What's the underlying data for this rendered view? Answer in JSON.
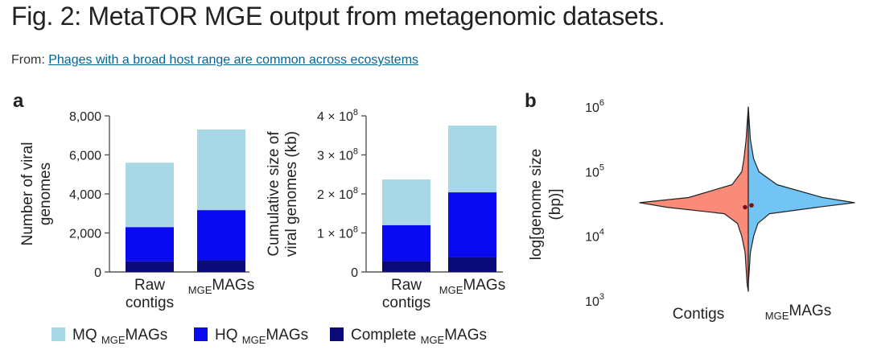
{
  "header": {
    "title": "Fig. 2: MetaTOR MGE output from metagenomic datasets.",
    "from_label": "From:",
    "from_link": "Phages with a broad host range are common across ecosystems"
  },
  "colors": {
    "mq": "#a8d8e5",
    "hq": "#0a0af0",
    "complete": "#0a0a78",
    "contigs_violin": "#fa8b78",
    "mags_violin": "#72c4f5"
  },
  "legend": [
    {
      "prefix": "MQ ",
      "sub": "MGE",
      "suffix": "MAGs",
      "color": "#a8d8e5"
    },
    {
      "prefix": "HQ ",
      "sub": "MGE",
      "suffix": "MAGs",
      "color": "#0a0af0"
    },
    {
      "prefix": "Complete ",
      "sub": "MGE",
      "suffix": "MAGs",
      "color": "#0a0a78"
    }
  ],
  "chart_data": [
    {
      "panel": "a",
      "type": "bar",
      "stacked": true,
      "ylabel": [
        "Number of viral",
        "genomes"
      ],
      "ylim": [
        0,
        8000
      ],
      "yticks": [
        0,
        2000,
        4000,
        6000,
        8000
      ],
      "ytick_labels": [
        "0",
        "2,000",
        "4,000",
        "6,000",
        "8,000"
      ],
      "categories": [
        {
          "lines": [
            "Raw",
            "contigs"
          ]
        },
        {
          "sub": "MGE",
          "main": "MAGs"
        }
      ],
      "series": [
        {
          "name": "Complete MGEMAGs",
          "color": "#0a0a78",
          "values": [
            550,
            600
          ]
        },
        {
          "name": "HQ MGEMAGs",
          "color": "#0a0af0",
          "values": [
            1750,
            2570
          ]
        },
        {
          "name": "MQ MGEMAGs",
          "color": "#a8d8e5",
          "values": [
            3300,
            4130
          ]
        }
      ]
    },
    {
      "panel": "a",
      "type": "bar",
      "stacked": true,
      "ylabel": [
        "Cumulative size of",
        "viral genomes (kb)"
      ],
      "ylim": [
        0,
        400000000
      ],
      "yticks": [
        0,
        100000000,
        200000000,
        300000000,
        400000000
      ],
      "ytick_labels": [
        "0",
        "1 × 10",
        "2 × 10",
        "3 × 10",
        "4 × 10"
      ],
      "ytick_exponents": [
        "",
        "8",
        "8",
        "8",
        "8"
      ],
      "categories": [
        {
          "lines": [
            "Raw",
            "contigs"
          ]
        },
        {
          "sub": "MGE",
          "main": "MAGs"
        }
      ],
      "series": [
        {
          "name": "Complete MGEMAGs",
          "color": "#0a0a78",
          "values": [
            28000000,
            38000000
          ]
        },
        {
          "name": "HQ MGEMAGs",
          "color": "#0a0af0",
          "values": [
            92000000,
            166000000
          ]
        },
        {
          "name": "MQ MGEMAGs",
          "color": "#a8d8e5",
          "values": [
            117000000,
            171000000
          ]
        }
      ]
    },
    {
      "panel": "b",
      "type": "violin",
      "split": true,
      "ylabel": [
        "log[genome size",
        "(bp)]"
      ],
      "yscale": "log",
      "ylim_log10": [
        3,
        6
      ],
      "ytick_exponents": [
        "3",
        "4",
        "5",
        "6"
      ],
      "groups": [
        {
          "label": "Contigs",
          "side": "left",
          "color": "#fa8b78",
          "median_log10": 4.45
        },
        {
          "sub": "MGE",
          "main": "MAGs",
          "side": "right",
          "color": "#72c4f5",
          "median_log10": 4.48
        }
      ],
      "density_log10": [
        3.25,
        3.5,
        3.75,
        4.0,
        4.2,
        4.35,
        4.45,
        4.52,
        4.6,
        4.8,
        5.0,
        5.2,
        5.5,
        5.75,
        6.0
      ],
      "contigs_width": [
        0.01,
        0.02,
        0.03,
        0.06,
        0.1,
        0.22,
        0.75,
        1.0,
        0.55,
        0.15,
        0.06,
        0.04,
        0.02,
        0.01,
        0.0
      ],
      "mags_width": [
        0.0,
        0.01,
        0.02,
        0.05,
        0.09,
        0.2,
        0.65,
        1.0,
        0.7,
        0.27,
        0.1,
        0.05,
        0.02,
        0.01,
        0.0
      ]
    }
  ],
  "panel_labels": {
    "a": "a",
    "b": "b"
  }
}
